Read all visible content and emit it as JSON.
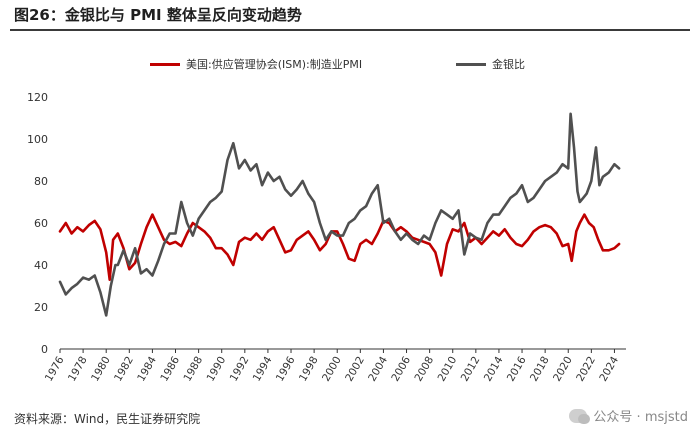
{
  "page": {
    "title": "图26：金银比与 PMI 整体呈反向变动趋势",
    "source": "资料来源：Wind，民生证券研究院",
    "watermark": "公众号 · msjstd"
  },
  "chart_data": {
    "type": "line",
    "legend_position": "top",
    "grid": false,
    "ylim": [
      0,
      120
    ],
    "yticks": [
      0,
      20,
      40,
      60,
      80,
      100,
      120
    ],
    "xlim": [
      1976,
      2025
    ],
    "xticks": [
      "1976",
      "1978",
      "1980",
      "1982",
      "1984",
      "1986",
      "1988",
      "1990",
      "1992",
      "1994",
      "1996",
      "1998",
      "2000",
      "2002",
      "2004",
      "2006",
      "2008",
      "2010",
      "2012",
      "2014",
      "2016",
      "2018",
      "2020",
      "2022",
      "2024"
    ],
    "series": [
      {
        "name": "美国:供应管理协会(ISM):制造业PMI",
        "color": "#c00000",
        "points": [
          [
            1976.0,
            56
          ],
          [
            1976.5,
            60
          ],
          [
            1977.0,
            55
          ],
          [
            1977.5,
            58
          ],
          [
            1978.0,
            56
          ],
          [
            1978.5,
            59
          ],
          [
            1979.0,
            61
          ],
          [
            1979.5,
            57
          ],
          [
            1980.0,
            46
          ],
          [
            1980.3,
            33
          ],
          [
            1980.6,
            52
          ],
          [
            1981.0,
            55
          ],
          [
            1981.5,
            48
          ],
          [
            1982.0,
            38
          ],
          [
            1982.5,
            41
          ],
          [
            1983.0,
            50
          ],
          [
            1983.5,
            58
          ],
          [
            1984.0,
            64
          ],
          [
            1984.5,
            58
          ],
          [
            1985.0,
            52
          ],
          [
            1985.5,
            50
          ],
          [
            1986.0,
            51
          ],
          [
            1986.5,
            49
          ],
          [
            1987.0,
            55
          ],
          [
            1987.5,
            60
          ],
          [
            1988.0,
            58
          ],
          [
            1988.5,
            56
          ],
          [
            1989.0,
            53
          ],
          [
            1989.5,
            48
          ],
          [
            1990.0,
            48
          ],
          [
            1990.5,
            45
          ],
          [
            1991.0,
            40
          ],
          [
            1991.5,
            51
          ],
          [
            1992.0,
            53
          ],
          [
            1992.5,
            52
          ],
          [
            1993.0,
            55
          ],
          [
            1993.5,
            52
          ],
          [
            1994.0,
            56
          ],
          [
            1994.5,
            58
          ],
          [
            1995.0,
            52
          ],
          [
            1995.5,
            46
          ],
          [
            1996.0,
            47
          ],
          [
            1996.5,
            52
          ],
          [
            1997.0,
            54
          ],
          [
            1997.5,
            56
          ],
          [
            1998.0,
            52
          ],
          [
            1998.5,
            47
          ],
          [
            1999.0,
            50
          ],
          [
            1999.5,
            56
          ],
          [
            2000.0,
            56
          ],
          [
            2000.5,
            50
          ],
          [
            2001.0,
            43
          ],
          [
            2001.5,
            42
          ],
          [
            2002.0,
            50
          ],
          [
            2002.5,
            52
          ],
          [
            2003.0,
            50
          ],
          [
            2003.5,
            55
          ],
          [
            2004.0,
            61
          ],
          [
            2004.5,
            60
          ],
          [
            2005.0,
            56
          ],
          [
            2005.5,
            58
          ],
          [
            2006.0,
            56
          ],
          [
            2006.5,
            53
          ],
          [
            2007.0,
            52
          ],
          [
            2007.5,
            51
          ],
          [
            2008.0,
            50
          ],
          [
            2008.5,
            46
          ],
          [
            2009.0,
            35
          ],
          [
            2009.5,
            50
          ],
          [
            2010.0,
            57
          ],
          [
            2010.5,
            56
          ],
          [
            2011.0,
            60
          ],
          [
            2011.5,
            51
          ],
          [
            2012.0,
            53
          ],
          [
            2012.5,
            50
          ],
          [
            2013.0,
            53
          ],
          [
            2013.5,
            56
          ],
          [
            2014.0,
            54
          ],
          [
            2014.5,
            57
          ],
          [
            2015.0,
            53
          ],
          [
            2015.5,
            50
          ],
          [
            2016.0,
            49
          ],
          [
            2016.5,
            52
          ],
          [
            2017.0,
            56
          ],
          [
            2017.5,
            58
          ],
          [
            2018.0,
            59
          ],
          [
            2018.5,
            58
          ],
          [
            2019.0,
            55
          ],
          [
            2019.5,
            49
          ],
          [
            2020.0,
            50
          ],
          [
            2020.3,
            42
          ],
          [
            2020.7,
            56
          ],
          [
            2021.0,
            60
          ],
          [
            2021.4,
            64
          ],
          [
            2021.8,
            60
          ],
          [
            2022.2,
            58
          ],
          [
            2022.6,
            52
          ],
          [
            2023.0,
            47
          ],
          [
            2023.5,
            47
          ],
          [
            2024.0,
            48
          ],
          [
            2024.4,
            50
          ]
        ]
      },
      {
        "name": "金银比",
        "color": "#505050",
        "points": [
          [
            1976.0,
            32
          ],
          [
            1976.5,
            26
          ],
          [
            1977.0,
            29
          ],
          [
            1977.5,
            31
          ],
          [
            1978.0,
            34
          ],
          [
            1978.5,
            33
          ],
          [
            1979.0,
            35
          ],
          [
            1979.5,
            27
          ],
          [
            1980.0,
            16
          ],
          [
            1980.4,
            30
          ],
          [
            1980.8,
            40
          ],
          [
            1981.0,
            40
          ],
          [
            1981.5,
            47
          ],
          [
            1982.0,
            40
          ],
          [
            1982.5,
            48
          ],
          [
            1983.0,
            36
          ],
          [
            1983.5,
            38
          ],
          [
            1984.0,
            35
          ],
          [
            1984.5,
            42
          ],
          [
            1985.0,
            50
          ],
          [
            1985.5,
            55
          ],
          [
            1986.0,
            55
          ],
          [
            1986.5,
            70
          ],
          [
            1987.0,
            60
          ],
          [
            1987.5,
            54
          ],
          [
            1988.0,
            62
          ],
          [
            1988.5,
            66
          ],
          [
            1989.0,
            70
          ],
          [
            1989.5,
            72
          ],
          [
            1990.0,
            75
          ],
          [
            1990.5,
            90
          ],
          [
            1991.0,
            98
          ],
          [
            1991.5,
            86
          ],
          [
            1992.0,
            90
          ],
          [
            1992.5,
            85
          ],
          [
            1993.0,
            88
          ],
          [
            1993.5,
            78
          ],
          [
            1994.0,
            84
          ],
          [
            1994.5,
            80
          ],
          [
            1995.0,
            82
          ],
          [
            1995.5,
            76
          ],
          [
            1996.0,
            73
          ],
          [
            1996.5,
            76
          ],
          [
            1997.0,
            80
          ],
          [
            1997.5,
            74
          ],
          [
            1998.0,
            70
          ],
          [
            1998.5,
            60
          ],
          [
            1999.0,
            52
          ],
          [
            1999.5,
            56
          ],
          [
            2000.0,
            54
          ],
          [
            2000.5,
            54
          ],
          [
            2001.0,
            60
          ],
          [
            2001.5,
            62
          ],
          [
            2002.0,
            66
          ],
          [
            2002.5,
            68
          ],
          [
            2003.0,
            74
          ],
          [
            2003.5,
            78
          ],
          [
            2004.0,
            60
          ],
          [
            2004.5,
            62
          ],
          [
            2005.0,
            56
          ],
          [
            2005.5,
            52
          ],
          [
            2006.0,
            55
          ],
          [
            2006.5,
            52
          ],
          [
            2007.0,
            50
          ],
          [
            2007.5,
            54
          ],
          [
            2008.0,
            52
          ],
          [
            2008.5,
            60
          ],
          [
            2009.0,
            66
          ],
          [
            2009.5,
            64
          ],
          [
            2010.0,
            62
          ],
          [
            2010.5,
            66
          ],
          [
            2011.0,
            45
          ],
          [
            2011.5,
            55
          ],
          [
            2012.0,
            53
          ],
          [
            2012.5,
            52
          ],
          [
            2013.0,
            60
          ],
          [
            2013.5,
            64
          ],
          [
            2014.0,
            64
          ],
          [
            2014.5,
            68
          ],
          [
            2015.0,
            72
          ],
          [
            2015.5,
            74
          ],
          [
            2016.0,
            78
          ],
          [
            2016.5,
            70
          ],
          [
            2017.0,
            72
          ],
          [
            2017.5,
            76
          ],
          [
            2018.0,
            80
          ],
          [
            2018.5,
            82
          ],
          [
            2019.0,
            84
          ],
          [
            2019.5,
            88
          ],
          [
            2020.0,
            86
          ],
          [
            2020.2,
            112
          ],
          [
            2020.5,
            96
          ],
          [
            2020.8,
            75
          ],
          [
            2021.0,
            70
          ],
          [
            2021.3,
            72
          ],
          [
            2021.6,
            74
          ],
          [
            2022.0,
            80
          ],
          [
            2022.4,
            96
          ],
          [
            2022.7,
            78
          ],
          [
            2023.0,
            82
          ],
          [
            2023.5,
            84
          ],
          [
            2024.0,
            88
          ],
          [
            2024.4,
            86
          ]
        ]
      }
    ]
  }
}
